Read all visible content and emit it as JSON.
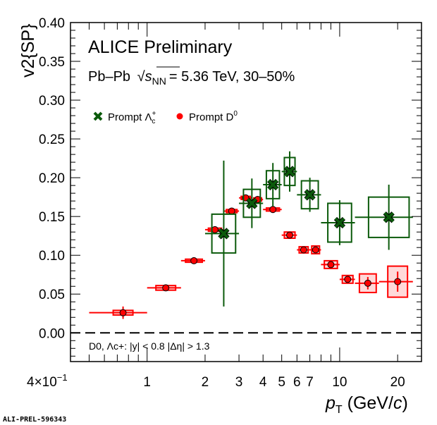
{
  "chart_data": {
    "type": "scatter",
    "title": "ALICE Preliminary",
    "subtitle": "Pb–Pb √s_NN = 5.36 TeV, 30–50%",
    "subtitle_parts": {
      "system": "Pb–Pb",
      "sqrt": "s",
      "sub": "NN",
      "rest": "= 5.36 TeV, 30–50%"
    },
    "xlabel": "p_T (GeV/c)",
    "xlabel_parts": {
      "p": "p",
      "sub": "T",
      "rest": " (GeV/",
      "c": "c",
      ")": ")"
    },
    "ylabel": "v2{SP}",
    "ylabel_parts": {
      "v": "v",
      "sub": "2",
      "rest": "{SP}"
    },
    "xscale": "log",
    "xlim": [
      0.4,
      26.6
    ],
    "ylim": [
      -0.037,
      0.4
    ],
    "xticks": [
      {
        "v": 0.4,
        "label": "4×10",
        "sup": "−1"
      },
      {
        "v": 1,
        "label": "1"
      },
      {
        "v": 2,
        "label": "2"
      },
      {
        "v": 3,
        "label": "3"
      },
      {
        "v": 4,
        "label": "4"
      },
      {
        "v": 5,
        "label": "5"
      },
      {
        "v": 6,
        "label": "6"
      },
      {
        "v": 7,
        "label": "7"
      },
      {
        "v": 10,
        "label": "10"
      },
      {
        "v": 20,
        "label": "20"
      }
    ],
    "yticks": [
      "0.00",
      "0.05",
      "0.10",
      "0.15",
      "0.20",
      "0.25",
      "0.30",
      "0.35",
      "0.40"
    ],
    "annotation": "D0, Λc+: |y| < 0.8 |Δη| > 1.3",
    "watermark": "ALI-PREL-596343",
    "legend_position": "top-left",
    "series": [
      {
        "name": "Prompt Λc+",
        "label": "Prompt Λ",
        "label_sup": "+",
        "label_sub": "c",
        "marker": "x",
        "color": "#0b5a0b",
        "points": [
          {
            "x": 2.5,
            "xlo": 2,
            "xhi": 3,
            "y": 0.128,
            "stat": 0.094,
            "sys": 0.025
          },
          {
            "x": 3.5,
            "xlo": 3,
            "xhi": 4,
            "y": 0.167,
            "stat": 0.032,
            "sys": 0.018
          },
          {
            "x": 4.5,
            "xlo": 4,
            "xhi": 5,
            "y": 0.191,
            "stat": 0.028,
            "sys": 0.018
          },
          {
            "x": 5.5,
            "xlo": 5,
            "xhi": 6,
            "y": 0.208,
            "stat": 0.026,
            "sys": 0.018
          },
          {
            "x": 7.0,
            "xlo": 6,
            "xhi": 8,
            "y": 0.178,
            "stat": 0.022,
            "sys": 0.018
          },
          {
            "x": 10,
            "xlo": 8,
            "xhi": 12,
            "y": 0.142,
            "stat": 0.029,
            "sys": 0.025
          },
          {
            "x": 18,
            "xlo": 12,
            "xhi": 24,
            "y": 0.149,
            "stat": 0.042,
            "sys": 0.026
          }
        ]
      },
      {
        "name": "Prompt D0",
        "label": "Prompt D",
        "label_sup": "0",
        "marker": "circle",
        "color": "#ff0000",
        "points": [
          {
            "x": 0.75,
            "xlo": 0.5,
            "xhi": 1,
            "y": 0.026,
            "stat": 0.008,
            "sys": 0.003
          },
          {
            "x": 1.25,
            "xlo": 1,
            "xhi": 1.5,
            "y": 0.058,
            "stat": 0.003,
            "sys": 0.003
          },
          {
            "x": 1.75,
            "xlo": 1.5,
            "xhi": 2,
            "y": 0.093,
            "stat": 0.002,
            "sys": 0.002
          },
          {
            "x": 2.25,
            "xlo": 2,
            "xhi": 2.5,
            "y": 0.133,
            "stat": 0.002,
            "sys": 0.002
          },
          {
            "x": 2.75,
            "xlo": 2.5,
            "xhi": 3,
            "y": 0.157,
            "stat": 0.002,
            "sys": 0.002
          },
          {
            "x": 3.25,
            "xlo": 3,
            "xhi": 3.5,
            "y": 0.174,
            "stat": 0.002,
            "sys": 0.002
          },
          {
            "x": 3.75,
            "xlo": 3.5,
            "xhi": 4,
            "y": 0.172,
            "stat": 0.002,
            "sys": 0.002
          },
          {
            "x": 4.5,
            "xlo": 4,
            "xhi": 5,
            "y": 0.159,
            "stat": 0.002,
            "sys": 0.002
          },
          {
            "x": 5.5,
            "xlo": 5,
            "xhi": 6,
            "y": 0.126,
            "stat": 0.003,
            "sys": 0.004
          },
          {
            "x": 6.5,
            "xlo": 6,
            "xhi": 7,
            "y": 0.107,
            "stat": 0.003,
            "sys": 0.004
          },
          {
            "x": 7.5,
            "xlo": 7,
            "xhi": 8,
            "y": 0.107,
            "stat": 0.004,
            "sys": 0.005
          },
          {
            "x": 9.0,
            "xlo": 8,
            "xhi": 10,
            "y": 0.088,
            "stat": 0.004,
            "sys": 0.005
          },
          {
            "x": 11,
            "xlo": 10,
            "xhi": 12,
            "y": 0.069,
            "stat": 0.005,
            "sys": 0.005
          },
          {
            "x": 14,
            "xlo": 12,
            "xhi": 16,
            "y": 0.064,
            "stat": 0.008,
            "sys": 0.012
          },
          {
            "x": 20,
            "xlo": 16,
            "xhi": 24,
            "y": 0.066,
            "stat": 0.013,
            "sys": 0.02
          }
        ]
      }
    ]
  }
}
